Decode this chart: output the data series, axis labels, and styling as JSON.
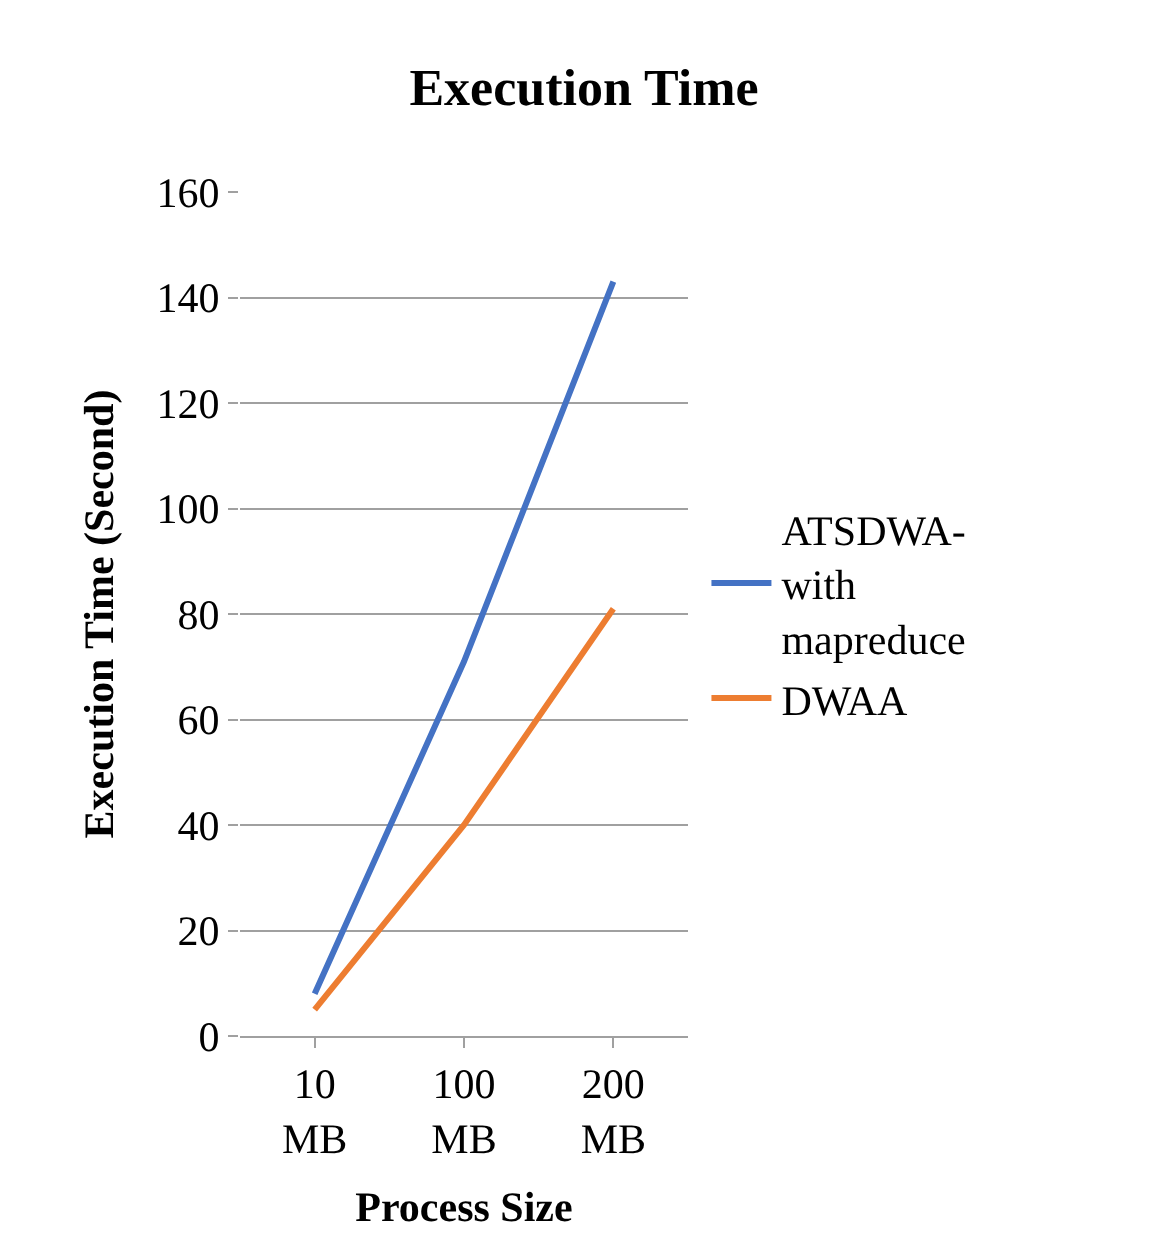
{
  "chart_data": {
    "type": "line",
    "title": "Execution Time",
    "xlabel": "Process Size",
    "ylabel": "Execution Time (Second)",
    "categories": [
      "10 MB",
      "100 MB",
      "200 MB"
    ],
    "series": [
      {
        "name": "ATSDWA-with mapreduce",
        "color": "#4472c4",
        "values": [
          8,
          71,
          143
        ]
      },
      {
        "name": "DWAA",
        "color": "#ed7d31",
        "values": [
          5,
          40,
          81
        ]
      }
    ],
    "ylim": [
      0,
      160
    ],
    "yticks": [
      0,
      20,
      40,
      60,
      80,
      100,
      120,
      140,
      160
    ],
    "grid": "y",
    "legend": "right",
    "marker": "none",
    "line_style": "solid"
  }
}
